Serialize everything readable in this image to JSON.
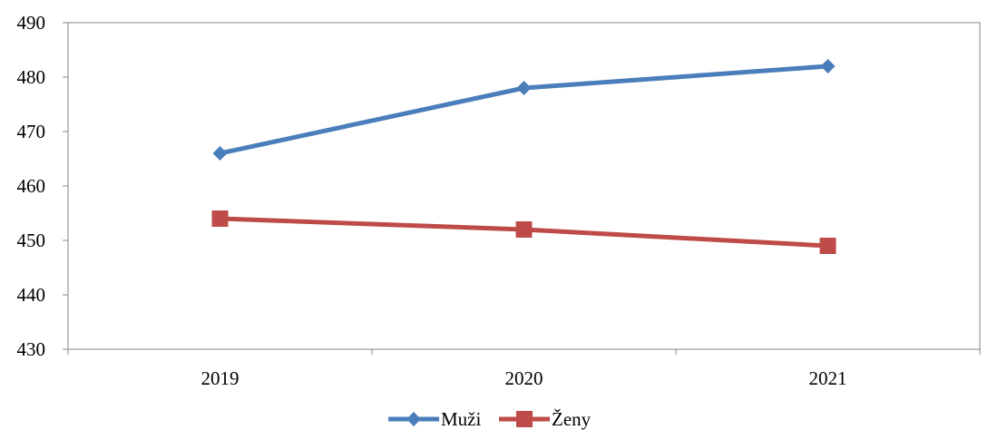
{
  "chart_data": {
    "type": "line",
    "title": "",
    "xlabel": "",
    "ylabel": "",
    "categories": [
      "2019",
      "2020",
      "2021"
    ],
    "ylim": [
      430,
      490
    ],
    "yticks": [
      430,
      440,
      450,
      460,
      470,
      480,
      490
    ],
    "grid": false,
    "legend_position": "bottom",
    "series": [
      {
        "name": "Muži",
        "values": [
          466,
          478,
          482
        ],
        "color": "#4a7ebb",
        "marker": "diamond"
      },
      {
        "name": "Ženy",
        "values": [
          454,
          452,
          449
        ],
        "color": "#be4b48",
        "marker": "square"
      }
    ]
  }
}
